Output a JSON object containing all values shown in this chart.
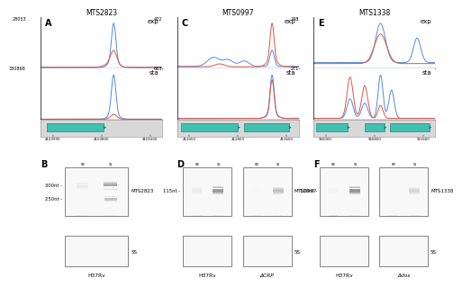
{
  "panel_titles": [
    "MTS2823",
    "MTS0997",
    "MTS1338"
  ],
  "panel_labels": [
    "A",
    "C",
    "E"
  ],
  "blot_labels": [
    "B",
    "D",
    "F"
  ],
  "y_max_exp": [
    "28053",
    "422",
    "248"
  ],
  "y_mid": [
    "330868",
    "663",
    "271"
  ],
  "genomic_coords": [
    [
      "4100999",
      "4100800",
      "4101600"
    ],
    [
      "412000",
      "412800",
      "413600"
    ],
    [
      "960000",
      "960800",
      "961600"
    ]
  ],
  "blot_marker_labels": [
    [
      "300nt",
      "250nt"
    ],
    [
      "115nt"
    ],
    [
      "100nt"
    ]
  ],
  "blot_probe_labels": [
    "MTS2823",
    "MTS0997",
    "MTS1338"
  ],
  "strain_labels": [
    [
      "H37Rv"
    ],
    [
      "H37Rv",
      "ΔCRP"
    ],
    [
      "H37Rv",
      "Δdos"
    ]
  ],
  "track_color": "#40c0b0",
  "blue_color": "#5588dd",
  "red_color": "#dd5544"
}
